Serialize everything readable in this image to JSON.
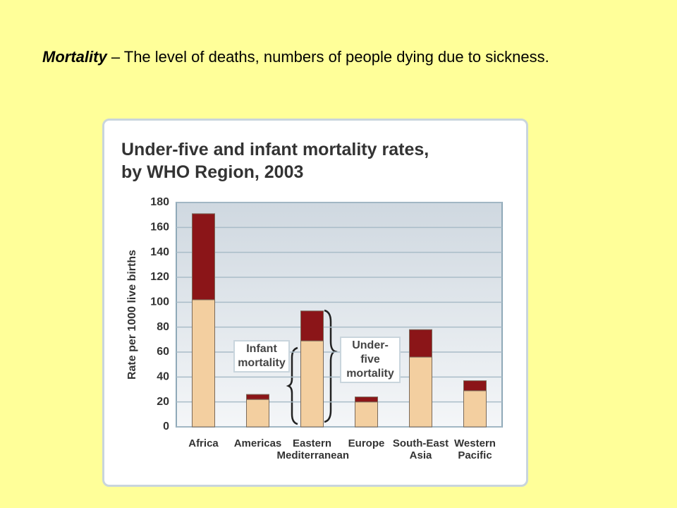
{
  "slide": {
    "term": "Mortality",
    "definition": "– The level of deaths, numbers of people dying due to sickness."
  },
  "chart_data": {
    "type": "stacked_bar",
    "title": "Under-five and infant mortality rates, by WHO Region, 2003",
    "y_label": "Rate per 1000 live births",
    "categories": [
      "Africa",
      "Americas",
      "Eastern Mediterranean",
      "Europe",
      "South-East Asia",
      "Western Pacific"
    ],
    "series": [
      {
        "name": "Infant mortality",
        "color": "#f3cfa0",
        "values": [
          102,
          22,
          69,
          20,
          56,
          29
        ]
      },
      {
        "name": "Under-five mortality",
        "color": "#8b1518",
        "values": [
          69,
          4,
          24,
          4,
          22,
          8
        ]
      }
    ],
    "ylim": [
      0,
      180
    ],
    "yticks": [
      0,
      20,
      40,
      60,
      80,
      100,
      120,
      140,
      160,
      180
    ],
    "grid": true
  }
}
